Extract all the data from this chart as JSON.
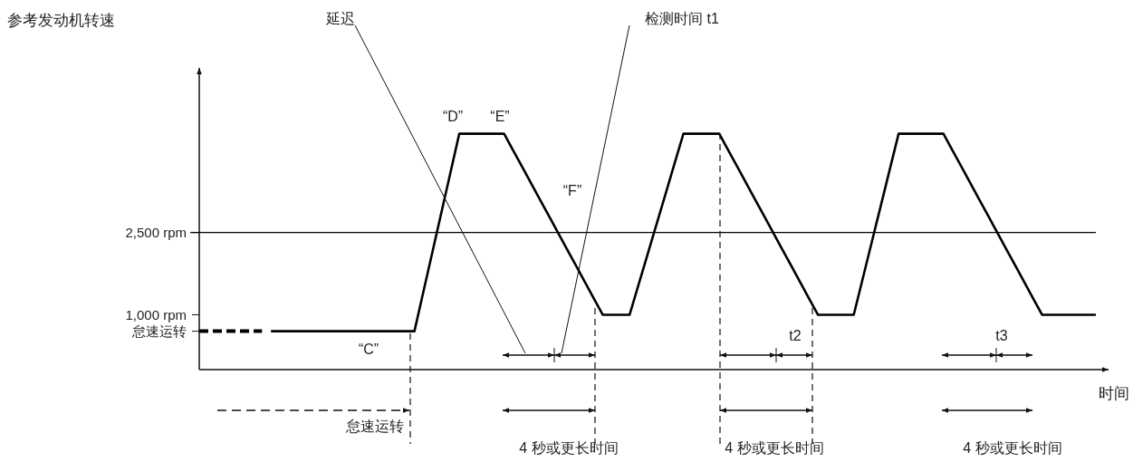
{
  "chart_data": {
    "type": "line",
    "ylabel": "参考发动机转速",
    "xlabel": "时间",
    "ylim": [
      0,
      5500
    ],
    "yticks": [
      {
        "value": 700,
        "label": "怠速运转"
      },
      {
        "value": 1000,
        "label": "1,000 rpm"
      },
      {
        "value": 2500,
        "label": "2,500 rpm"
      }
    ],
    "tick_labels": "y",
    "grid": false,
    "categories": [
      null,
      null,
      null,
      null,
      null,
      null,
      null,
      null,
      null,
      null,
      null,
      null,
      null,
      null,
      null,
      null,
      null,
      null,
      null,
      null,
      null,
      null,
      null,
      null,
      null,
      null,
      null,
      null,
      null,
      null,
      null,
      null,
      null,
      null,
      null,
      null,
      null,
      null,
      null,
      null,
      null,
      null,
      null,
      null,
      null,
      null,
      null,
      null,
      null,
      null,
      null,
      null,
      null,
      null,
      null,
      null,
      null,
      null,
      null,
      null,
      null,
      null,
      null,
      null,
      null,
      null,
      null,
      null,
      null,
      null,
      null,
      null,
      null,
      null,
      null,
      null,
      null,
      null,
      null,
      null,
      null,
      null,
      null,
      null,
      null,
      null,
      null,
      null,
      null,
      null,
      null,
      null,
      null,
      null,
      null,
      null,
      null,
      null,
      null,
      null,
      null
    ],
    "series": [
      {
        "color": "#000000",
        "line_style": "dashed",
        "values": [
          700,
          700,
          700,
          700,
          700,
          700,
          700,
          700,
          null,
          null,
          null,
          null,
          null,
          null,
          null,
          null,
          null,
          null,
          null,
          null,
          null,
          null,
          null,
          null,
          null,
          null,
          null,
          null,
          null,
          null,
          null,
          null,
          null,
          null,
          null,
          null,
          null,
          null,
          null,
          null,
          null,
          null,
          null,
          null,
          null,
          null,
          null,
          null,
          null,
          null,
          null,
          null,
          null,
          null,
          null,
          null,
          null,
          null,
          null,
          null,
          null,
          null,
          null,
          null,
          null,
          null,
          null,
          null,
          null,
          null,
          null,
          null,
          null,
          null,
          null,
          null,
          null,
          null,
          null,
          null,
          null,
          null,
          null,
          null,
          null,
          null,
          null,
          null,
          null,
          null,
          null,
          null,
          null,
          null,
          null,
          null,
          null,
          null,
          null,
          null,
          null
        ]
      },
      {
        "color": "#000000",
        "line_style": "solid",
        "values": [
          null,
          null,
          null,
          null,
          null,
          null,
          null,
          null,
          700,
          700,
          700,
          700,
          700,
          700,
          700,
          700,
          700,
          700,
          700,
          700,
          700,
          700,
          700,
          700,
          700,
          1420,
          2140,
          2860,
          3580,
          4300,
          4300,
          4300,
          4300,
          4300,
          4300,
          4000,
          3700,
          3400,
          3100,
          2800,
          2500,
          2200,
          1900,
          1600,
          1300,
          1000,
          1000,
          1000,
          1000,
          1550,
          2100,
          2650,
          3200,
          3750,
          4300,
          4300,
          4300,
          4300,
          4300,
          4000,
          3700,
          3400,
          3100,
          2800,
          2500,
          2200,
          1900,
          1600,
          1300,
          1000,
          1000,
          1000,
          1000,
          1000,
          1660,
          2320,
          2980,
          3640,
          4300,
          4300,
          4300,
          4300,
          4300,
          4300,
          4000,
          3700,
          3400,
          3100,
          2800,
          2500,
          2200,
          1900,
          1600,
          1300,
          1000,
          1000,
          1000,
          1000,
          1000,
          1000,
          1000
        ]
      }
    ],
    "ref_lines": [
      {
        "axis": "y",
        "value": 2500,
        "color": "#000000",
        "line_style": "solid"
      }
    ],
    "annotations": [
      "“C”",
      "“D”",
      "“E”",
      "“F”",
      "延迟",
      "检测时间 t1",
      "t2",
      "t3",
      "怠速运转",
      "4 秒或更长时间",
      "4 秒或更长时间",
      "4 秒或更长时间"
    ]
  }
}
